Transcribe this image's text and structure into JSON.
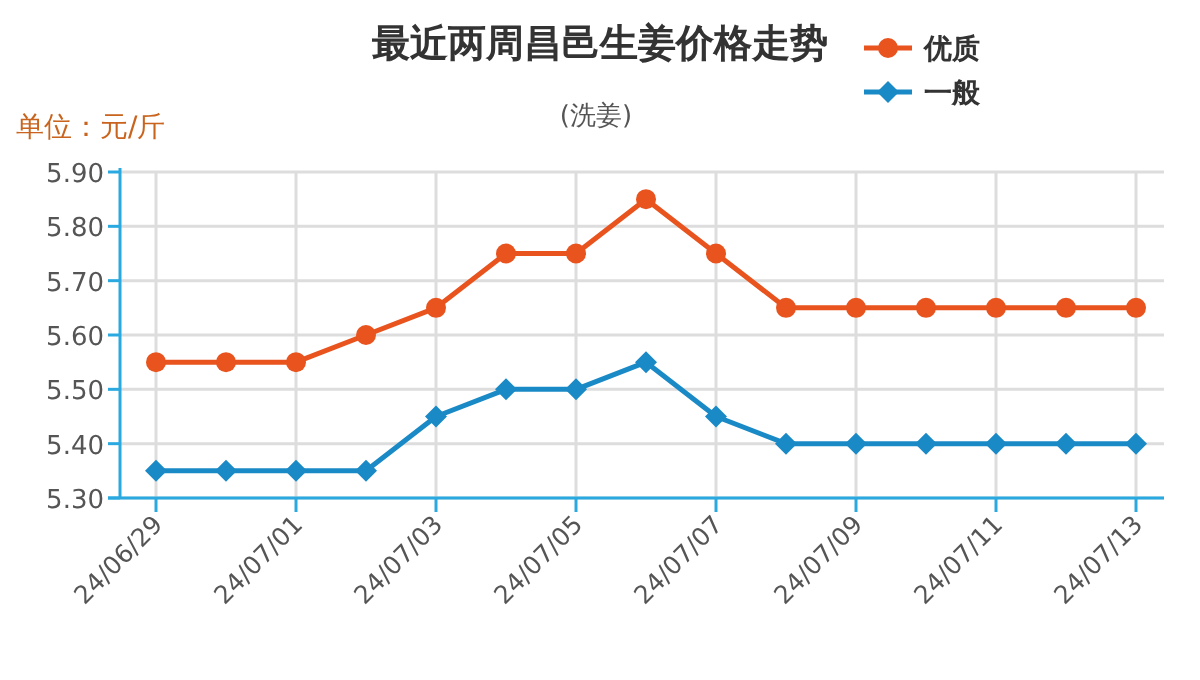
{
  "chart_data": {
    "type": "line",
    "title": "最近两周昌邑生姜价格走势",
    "subtitle": "(洗姜)",
    "ylabel": "单位：元/斤",
    "categories": [
      "24/06/29",
      null,
      "24/07/01",
      null,
      "24/07/03",
      null,
      "24/07/05",
      null,
      "24/07/07",
      null,
      "24/07/09",
      null,
      "24/07/11",
      null,
      "24/07/13"
    ],
    "series": [
      {
        "name": "优质",
        "color": "#e8531e",
        "marker": "circle",
        "values": [
          5.55,
          5.55,
          5.55,
          5.6,
          5.65,
          5.75,
          5.75,
          5.85,
          5.75,
          5.65,
          5.65,
          5.65,
          5.65,
          5.65,
          5.65
        ]
      },
      {
        "name": "一般",
        "color": "#1a8ac6",
        "marker": "diamond",
        "values": [
          5.35,
          5.35,
          5.35,
          5.35,
          5.45,
          5.5,
          5.5,
          5.55,
          5.45,
          5.4,
          5.4,
          5.4,
          5.4,
          5.4,
          5.4
        ]
      }
    ],
    "ylim": [
      5.3,
      5.9
    ],
    "yticks": [
      {
        "value": 5.3,
        "label": "5.30"
      },
      {
        "value": 5.4,
        "label": "5.40"
      },
      {
        "value": 5.5,
        "label": "5.50"
      },
      {
        "value": 5.6,
        "label": "5.60"
      },
      {
        "value": 5.7,
        "label": "5.70"
      },
      {
        "value": 5.8,
        "label": "5.80"
      },
      {
        "value": 5.9,
        "label": "5.90"
      }
    ],
    "grid": true,
    "legend": "top right"
  }
}
